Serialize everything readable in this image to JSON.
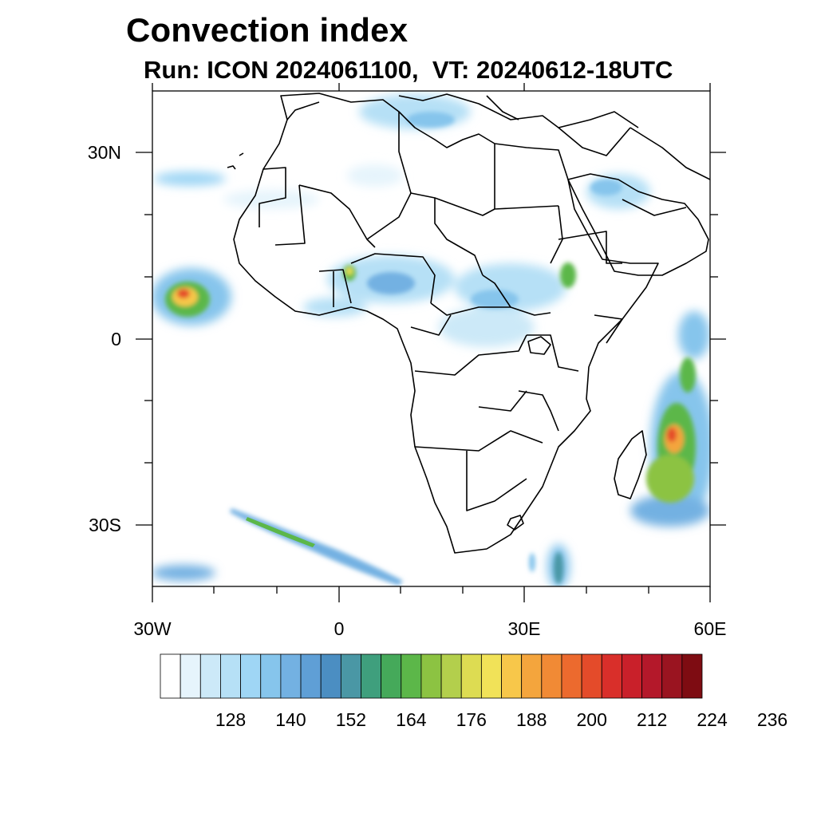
{
  "title": "Convection index",
  "subtitle": "Run: ICON 2024061100,  VT: 20240612-18UTC",
  "map": {
    "lon_range": [
      -30,
      60
    ],
    "lat_range": [
      -40,
      40
    ],
    "y_tick_labels": [
      "30N",
      "0",
      "30S"
    ],
    "x_tick_labels": [
      "30W",
      "0",
      "30E",
      "60E"
    ]
  },
  "colorbar": {
    "labels": [
      "128",
      "140",
      "152",
      "164",
      "176",
      "188",
      "200",
      "212",
      "224",
      "236"
    ],
    "colors": [
      "#ffffff",
      "#e6f4fc",
      "#cce9f8",
      "#b6e0f6",
      "#9fd6f5",
      "#86c5ec",
      "#73b1e2",
      "#5f9fd6",
      "#4b8ec2",
      "#4a97a5",
      "#3f9f7d",
      "#45a95a",
      "#5cb749",
      "#8cc342",
      "#b3cf4c",
      "#dddc52",
      "#f1e258",
      "#f7c74a",
      "#f4a53d",
      "#f18a35",
      "#ec6a2e",
      "#e44b2a",
      "#d92f2a",
      "#c9202a",
      "#b4182a",
      "#9a1420",
      "#7e0c12"
    ]
  }
}
